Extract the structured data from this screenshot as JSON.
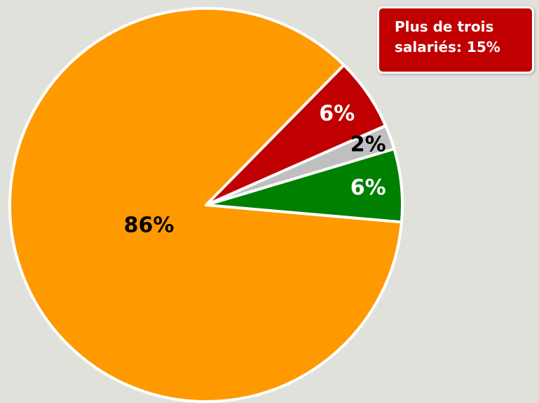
{
  "chart_data": {
    "type": "pie",
    "values": [
      6,
      2,
      6,
      86
    ],
    "value_labels": [
      "6%",
      "2%",
      "6%",
      "86%"
    ],
    "colors": [
      "#008000",
      "#bfbfbf",
      "#c00000",
      "#ff9900"
    ],
    "value_label_colors": [
      "#ffffff",
      "#000000",
      "#ffffff",
      "#000000"
    ],
    "annotation": "Plus de trois salariés: 15%"
  }
}
